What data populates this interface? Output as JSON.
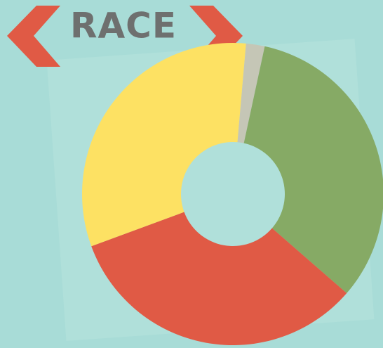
{
  "chart_data": {
    "type": "pie",
    "title": "RACE",
    "categories": [
      null,
      null,
      null,
      null
    ],
    "values": [
      2,
      33,
      33,
      32
    ],
    "colors": [
      "#c5c6b6",
      "#86aa65",
      "#e05a45",
      "#fde163"
    ]
  }
}
